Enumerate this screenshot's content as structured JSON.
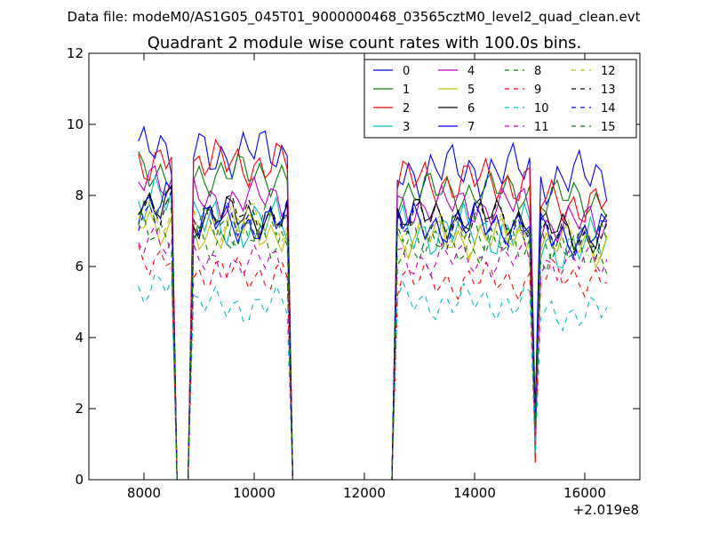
{
  "chart_data": {
    "type": "line",
    "suptitle": "Data file: modeM0/AS1G05_045T01_9000000468_03565cztM0_level2_quad_clean.evt",
    "title": "Quadrant 2 module wise count rates with 100.0s bins.",
    "xlabel": "",
    "ylabel": "",
    "x_offset_label": "+2.019e8",
    "xlim": [
      7000,
      17000
    ],
    "ylim": [
      0,
      12
    ],
    "xticks": [
      8000,
      10000,
      12000,
      14000,
      16000
    ],
    "yticks": [
      0,
      2,
      4,
      6,
      8,
      10,
      12
    ],
    "grid": false,
    "legend_position": "top-right",
    "legend_columns": 4,
    "segments": [
      {
        "start": 7900,
        "end": 8500,
        "n": 7
      },
      {
        "start": 8600,
        "end": 8800,
        "n": 3
      },
      {
        "start": 8900,
        "end": 10600,
        "n": 18
      },
      {
        "start": 10700,
        "end": 12500,
        "n": 19
      },
      {
        "start": 12600,
        "end": 15000,
        "n": 25
      },
      {
        "start": 15100,
        "end": 15100,
        "n": 1
      },
      {
        "start": 15200,
        "end": 16400,
        "n": 13
      }
    ],
    "series": [
      {
        "name": "0",
        "color": "#0000ff",
        "dash": "solid",
        "levels": [
          9.2,
          0,
          9.2,
          0,
          8.7,
          1.8,
          8.5
        ],
        "amp": 0.5,
        "phase": 0.3
      },
      {
        "name": "1",
        "color": "#008000",
        "dash": "solid",
        "levels": [
          8.7,
          0,
          8.6,
          0,
          8.1,
          1.6,
          7.9
        ],
        "amp": 0.4,
        "phase": 1.1
      },
      {
        "name": "2",
        "color": "#ff0000",
        "dash": "solid",
        "levels": [
          9.0,
          0,
          8.9,
          0,
          8.4,
          1.1,
          7.8
        ],
        "amp": 0.45,
        "phase": 2.0
      },
      {
        "name": "3",
        "color": "#00bfbf",
        "dash": "solid",
        "levels": [
          7.8,
          0,
          7.2,
          0,
          7.0,
          1.5,
          6.6
        ],
        "amp": 0.5,
        "phase": 2.7
      },
      {
        "name": "4",
        "color": "#bf00bf",
        "dash": "solid",
        "levels": [
          8.3,
          0,
          7.9,
          0,
          7.7,
          1.6,
          7.2
        ],
        "amp": 0.4,
        "phase": 3.3
      },
      {
        "name": "5",
        "color": "#bfbf00",
        "dash": "solid",
        "levels": [
          7.2,
          0,
          7.0,
          0,
          6.8,
          1.4,
          6.6
        ],
        "amp": 0.4,
        "phase": 4.0
      },
      {
        "name": "6",
        "color": "#000000",
        "dash": "solid",
        "levels": [
          7.9,
          0,
          7.4,
          0,
          7.4,
          1.5,
          7.0
        ],
        "amp": 0.4,
        "phase": 4.6
      },
      {
        "name": "7",
        "color": "#0000ff",
        "dash": "solid",
        "levels": [
          7.8,
          0,
          7.2,
          0,
          7.2,
          1.5,
          6.9
        ],
        "amp": 0.4,
        "phase": 5.2
      },
      {
        "name": "8",
        "color": "#008000",
        "dash": "dash",
        "levels": [
          7.0,
          0,
          6.8,
          0,
          6.6,
          1.4,
          6.4
        ],
        "amp": 0.4,
        "phase": 0.8
      },
      {
        "name": "9",
        "color": "#ff0000",
        "dash": "dash",
        "levels": [
          6.3,
          0,
          5.8,
          0,
          5.6,
          1.2,
          5.7
        ],
        "amp": 0.35,
        "phase": 1.6
      },
      {
        "name": "10",
        "color": "#00bfbf",
        "dash": "dash",
        "levels": [
          5.4,
          0,
          4.9,
          0,
          5.0,
          1.2,
          4.7
        ],
        "amp": 0.35,
        "phase": 2.4
      },
      {
        "name": "11",
        "color": "#bf00bf",
        "dash": "dash",
        "levels": [
          6.6,
          0,
          6.1,
          0,
          6.2,
          1.3,
          6.1
        ],
        "amp": 0.35,
        "phase": 3.1
      },
      {
        "name": "12",
        "color": "#bfbf00",
        "dash": "dash",
        "levels": [
          7.4,
          0,
          7.3,
          0,
          6.9,
          1.5,
          6.7
        ],
        "amp": 0.4,
        "phase": 3.8
      },
      {
        "name": "13",
        "color": "#000000",
        "dash": "dash",
        "levels": [
          7.8,
          0,
          7.5,
          0,
          7.3,
          1.5,
          6.8
        ],
        "amp": 0.4,
        "phase": 4.4
      },
      {
        "name": "14",
        "color": "#0000ff",
        "dash": "dash",
        "levels": [
          7.6,
          0,
          7.3,
          0,
          7.1,
          1.5,
          6.8
        ],
        "amp": 0.4,
        "phase": 5.0
      },
      {
        "name": "15",
        "color": "#008000",
        "dash": "dash",
        "levels": [
          7.5,
          0,
          7.1,
          0,
          6.9,
          1.4,
          6.7
        ],
        "amp": 0.4,
        "phase": 5.7
      }
    ]
  }
}
